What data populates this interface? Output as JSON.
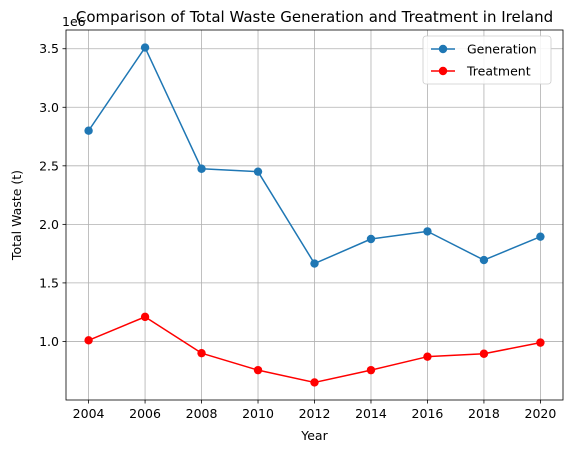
{
  "chart_data": {
    "type": "line",
    "title": "Comparison of Total Waste Generation and Treatment in Ireland",
    "xlabel": "Year",
    "ylabel": "Total Waste (t)",
    "offset_label": "1e6",
    "x": [
      2004,
      2006,
      2008,
      2010,
      2012,
      2014,
      2016,
      2018,
      2020
    ],
    "x_ticks": [
      "2004",
      "2006",
      "2008",
      "2010",
      "2012",
      "2014",
      "2016",
      "2018",
      "2020"
    ],
    "y_ticks": [
      "1.0",
      "1.5",
      "2.0",
      "2.5",
      "3.0",
      "3.5"
    ],
    "y_tick_values": [
      1000000,
      1500000,
      2000000,
      2500000,
      3000000,
      3500000
    ],
    "xlim": [
      2003.2,
      2020.8
    ],
    "ylim": [
      500000,
      3660000
    ],
    "grid": true,
    "legend_position": "top-right",
    "series": [
      {
        "name": "Generation",
        "color": "#1f77b4",
        "values": [
          2800000,
          3510000,
          2475000,
          2450000,
          1665000,
          1875000,
          1940000,
          1695000,
          1895000
        ]
      },
      {
        "name": "Treatment",
        "color": "#ff0000",
        "values": [
          1010000,
          1210000,
          900000,
          755000,
          650000,
          755000,
          870000,
          895000,
          990000
        ]
      }
    ]
  }
}
